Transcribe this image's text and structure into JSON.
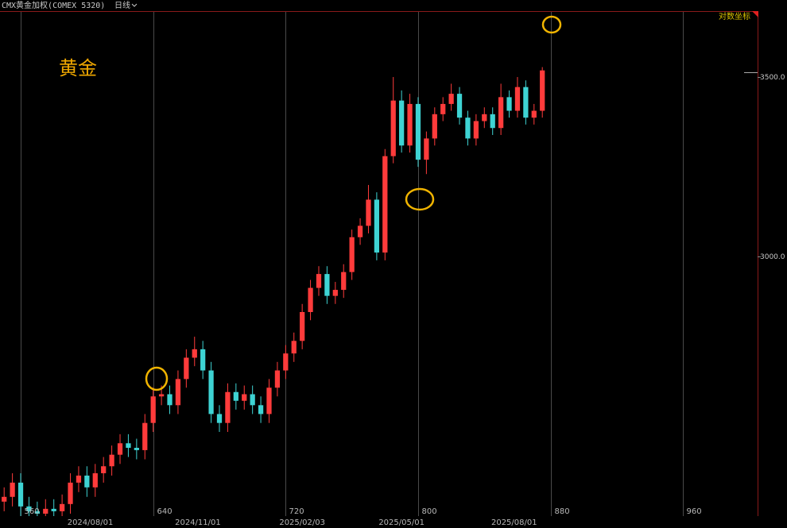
{
  "chart_data": {
    "type": "candlestick",
    "title": "CMX黄金加权(COMEX 5320)",
    "period": "日线",
    "scale_label": "对数坐标",
    "annotation": "黄金",
    "log_scale": true,
    "up_color": "#ff3b3b",
    "down_color": "#3ed3d3",
    "x": [
      550,
      555,
      560,
      565,
      570,
      575,
      580,
      585,
      590,
      595,
      600,
      605,
      610,
      615,
      620,
      625,
      630,
      635,
      640,
      645,
      650,
      655,
      660,
      665,
      670,
      675,
      680,
      685,
      690,
      695,
      700,
      705,
      710,
      715,
      720,
      725,
      730,
      735,
      740,
      745,
      750,
      755,
      760,
      765,
      770,
      775,
      780,
      785,
      790,
      795,
      800,
      805,
      810,
      815,
      820,
      825,
      830,
      835,
      840,
      845,
      850,
      855,
      860,
      865,
      870,
      875
    ],
    "open": [
      2430,
      2440,
      2470,
      2420,
      2410,
      2405,
      2415,
      2410,
      2425,
      2470,
      2485,
      2460,
      2490,
      2505,
      2530,
      2555,
      2545,
      2540,
      2600,
      2660,
      2665,
      2640,
      2700,
      2750,
      2770,
      2720,
      2620,
      2600,
      2670,
      2650,
      2665,
      2640,
      2620,
      2680,
      2720,
      2760,
      2790,
      2860,
      2920,
      2955,
      2900,
      2915,
      2960,
      3050,
      3080,
      3150,
      3010,
      3270,
      3430,
      3300,
      3420,
      3260,
      3320,
      3390,
      3420,
      3450,
      3380,
      3320,
      3370,
      3390,
      3350,
      3440,
      3400,
      3470,
      3380,
      3400
    ],
    "high": [
      2460,
      2490,
      2490,
      2440,
      2430,
      2435,
      2435,
      2445,
      2490,
      2505,
      2505,
      2510,
      2525,
      2550,
      2575,
      2575,
      2565,
      2620,
      2680,
      2685,
      2685,
      2720,
      2770,
      2800,
      2790,
      2740,
      2640,
      2690,
      2690,
      2685,
      2685,
      2660,
      2700,
      2740,
      2780,
      2810,
      2880,
      2940,
      2975,
      2975,
      2935,
      2980,
      3070,
      3100,
      3190,
      3170,
      3290,
      3500,
      3460,
      3450,
      3440,
      3340,
      3410,
      3440,
      3480,
      3470,
      3400,
      3390,
      3410,
      3410,
      3480,
      3460,
      3500,
      3490,
      3420,
      3530
    ],
    "low": [
      2410,
      2420,
      2400,
      2390,
      2385,
      2385,
      2390,
      2390,
      2405,
      2450,
      2440,
      2440,
      2470,
      2485,
      2510,
      2525,
      2520,
      2520,
      2580,
      2640,
      2620,
      2620,
      2680,
      2730,
      2700,
      2600,
      2580,
      2580,
      2630,
      2630,
      2620,
      2600,
      2600,
      2660,
      2700,
      2740,
      2770,
      2840,
      2900,
      2880,
      2880,
      2895,
      2940,
      3030,
      3060,
      2990,
      2990,
      3250,
      3280,
      3280,
      3240,
      3220,
      3300,
      3370,
      3400,
      3360,
      3300,
      3300,
      3350,
      3330,
      3330,
      3380,
      3380,
      3360,
      3360,
      3380
    ],
    "close": [
      2440,
      2470,
      2420,
      2410,
      2405,
      2415,
      2410,
      2425,
      2470,
      2485,
      2460,
      2490,
      2505,
      2530,
      2555,
      2545,
      2540,
      2600,
      2660,
      2665,
      2640,
      2700,
      2750,
      2770,
      2720,
      2620,
      2600,
      2670,
      2650,
      2665,
      2640,
      2620,
      2680,
      2720,
      2760,
      2790,
      2860,
      2920,
      2955,
      2900,
      2915,
      2960,
      3050,
      3080,
      3150,
      3010,
      3270,
      3430,
      3300,
      3420,
      3260,
      3320,
      3390,
      3420,
      3450,
      3380,
      3320,
      3370,
      3390,
      3350,
      3440,
      3400,
      3470,
      3380,
      3400,
      3520
    ],
    "xlim": [
      547.5,
      1005
    ],
    "xticks": [
      560,
      640,
      720,
      800,
      880,
      960
    ],
    "date_ticks": [
      {
        "value": 602,
        "label": "2024/08/01"
      },
      {
        "value": 667,
        "label": "2024/11/01"
      },
      {
        "value": 730,
        "label": "2025/02/03"
      },
      {
        "value": 790,
        "label": "2025/05/01"
      },
      {
        "value": 858,
        "label": "2025/08/01"
      }
    ],
    "ylim": [
      2400,
      3704
    ],
    "yticks": [
      {
        "value": 3000,
        "label": "3000.0"
      },
      {
        "value": 3500,
        "label": "3500.0"
      }
    ]
  }
}
